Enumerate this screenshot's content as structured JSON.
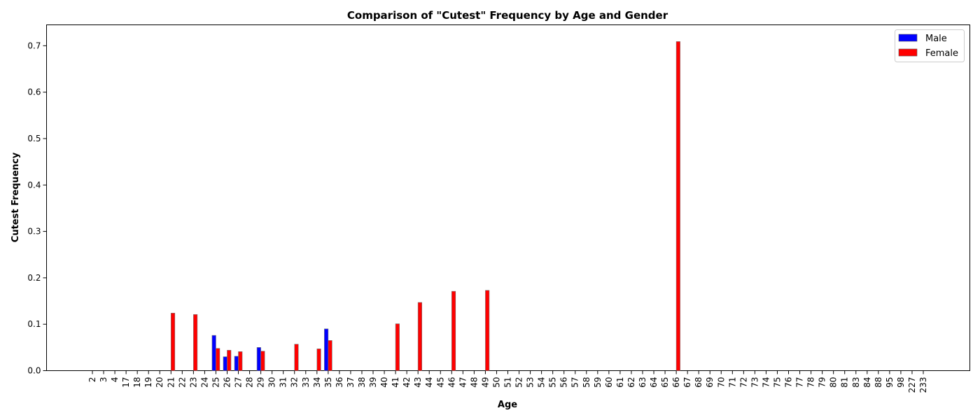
{
  "chart_data": {
    "type": "bar",
    "title": "Comparison of \"Cutest\" Frequency by Age and Gender",
    "xlabel": "Age",
    "ylabel": "Cutest Frequency",
    "ylim": [
      0,
      0.745
    ],
    "yticks": [
      "0.0",
      "0.1",
      "0.2",
      "0.3",
      "0.4",
      "0.5",
      "0.6",
      "0.7"
    ],
    "grid": false,
    "legend_position": "top-right",
    "categories": [
      "2",
      "3",
      "4",
      "17",
      "18",
      "19",
      "20",
      "21",
      "22",
      "23",
      "24",
      "25",
      "26",
      "27",
      "28",
      "29",
      "30",
      "31",
      "32",
      "33",
      "34",
      "35",
      "36",
      "37",
      "38",
      "39",
      "40",
      "41",
      "42",
      "43",
      "44",
      "45",
      "46",
      "47",
      "48",
      "49",
      "50",
      "51",
      "52",
      "53",
      "54",
      "55",
      "56",
      "57",
      "58",
      "59",
      "60",
      "61",
      "62",
      "63",
      "64",
      "65",
      "66",
      "67",
      "68",
      "69",
      "70",
      "71",
      "72",
      "73",
      "74",
      "75",
      "76",
      "77",
      "78",
      "79",
      "80",
      "81",
      "83",
      "84",
      "88",
      "95",
      "98",
      "227",
      "233"
    ],
    "series": [
      {
        "name": "Male",
        "color": "#0000ff",
        "values": [
          0,
          0,
          0,
          0,
          0,
          0,
          0,
          0,
          0,
          0,
          0,
          0.076,
          0.03,
          0.031,
          0,
          0.05,
          0,
          0,
          0,
          0,
          0,
          0.09,
          0,
          0,
          0,
          0,
          0,
          0,
          0,
          0,
          0,
          0,
          0,
          0,
          0,
          0,
          0,
          0,
          0,
          0,
          0,
          0,
          0,
          0,
          0,
          0,
          0,
          0,
          0,
          0,
          0,
          0,
          0,
          0,
          0,
          0,
          0,
          0,
          0,
          0,
          0,
          0,
          0,
          0,
          0,
          0,
          0,
          0,
          0,
          0,
          0,
          0,
          0,
          0,
          0
        ]
      },
      {
        "name": "Female",
        "color": "#ff0000",
        "values": [
          0,
          0,
          0,
          0,
          0,
          0,
          0,
          0.124,
          0,
          0.121,
          0,
          0.048,
          0.044,
          0.041,
          0,
          0.042,
          0,
          0,
          0.057,
          0,
          0.047,
          0.065,
          0,
          0,
          0,
          0,
          0,
          0.101,
          0,
          0.147,
          0,
          0,
          0.171,
          0,
          0,
          0.173,
          0,
          0,
          0,
          0,
          0,
          0,
          0,
          0,
          0,
          0,
          0,
          0,
          0,
          0,
          0,
          0,
          0.709,
          0,
          0,
          0,
          0,
          0,
          0,
          0,
          0,
          0,
          0,
          0,
          0,
          0,
          0,
          0,
          0,
          0,
          0,
          0,
          0,
          0,
          0
        ]
      }
    ]
  }
}
